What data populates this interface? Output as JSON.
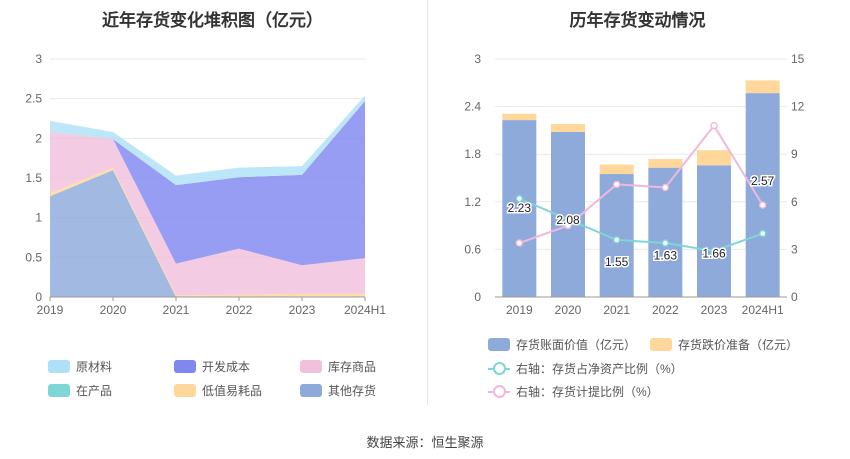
{
  "source_text": "数据来源：恒生聚源",
  "chart_data": [
    {
      "type": "area",
      "title": "近年存货变化堆积图（亿元）",
      "categories": [
        "2019",
        "2020",
        "2021",
        "2022",
        "2023",
        "2024H1"
      ],
      "ylim": [
        0,
        3
      ],
      "yticks": [
        "0",
        "0.5",
        "1",
        "1.5",
        "2",
        "2.5",
        "3"
      ],
      "stacked": true,
      "grid": true,
      "legend_position": "bottom",
      "series": [
        {
          "name": "其他存货",
          "color": "#8eaadb",
          "values": [
            1.27,
            1.6,
            0,
            0,
            0,
            0
          ]
        },
        {
          "name": "低值易耗品",
          "color": "#ffd79a",
          "values": [
            0.04,
            0.03,
            0.02,
            0.03,
            0.04,
            0.04
          ]
        },
        {
          "name": "在产品",
          "color": "#7fd6d6",
          "values": [
            0,
            0,
            0,
            0,
            0,
            0
          ]
        },
        {
          "name": "库存商品",
          "color": "#f0c0dc",
          "values": [
            0.77,
            0.36,
            0.4,
            0.58,
            0.36,
            0.45
          ]
        },
        {
          "name": "开发成本",
          "color": "#8088f0",
          "values": [
            0,
            0,
            0.99,
            0.9,
            1.14,
            1.98
          ]
        },
        {
          "name": "原材料",
          "color": "#aee0f8",
          "values": [
            0.14,
            0.09,
            0.12,
            0.12,
            0.11,
            0.07
          ]
        }
      ],
      "legend_order": [
        "原材料",
        "开发成本",
        "库存商品",
        "在产品",
        "低值易耗品",
        "其他存货"
      ]
    },
    {
      "type": "bar",
      "title": "历年存货变动情况",
      "categories": [
        "2019",
        "2020",
        "2021",
        "2022",
        "2023",
        "2024H1"
      ],
      "ylim": [
        0,
        3
      ],
      "yticks": [
        "0",
        "0.6",
        "1.2",
        "1.8",
        "2.4",
        "3"
      ],
      "y2lim": [
        0,
        15
      ],
      "y2ticks": [
        "0",
        "3",
        "6",
        "9",
        "12",
        "15"
      ],
      "stacked": true,
      "grid": true,
      "legend_position": "bottom",
      "series": [
        {
          "name": "存货账面价值（亿元）",
          "color": "#8eaadb",
          "values": [
            2.23,
            2.08,
            1.55,
            1.63,
            1.66,
            2.57
          ],
          "labels": [
            "2.23",
            "2.08",
            "1.55",
            "1.63",
            "1.66",
            "2.57"
          ]
        },
        {
          "name": "存货跌价准备（亿元）",
          "color": "#ffd79a",
          "values": [
            0.08,
            0.1,
            0.12,
            0.11,
            0.19,
            0.16
          ]
        }
      ],
      "line_series": [
        {
          "name": "右轴：存货占净资产比例（%）",
          "color": "#7fd6d6",
          "axis": "right",
          "values": [
            6.2,
            4.9,
            3.6,
            3.4,
            2.9,
            4.0
          ]
        },
        {
          "name": "右轴：存货计提比例（%）",
          "color": "#f0b8dc",
          "axis": "right",
          "values": [
            3.4,
            4.5,
            7.1,
            6.9,
            10.8,
            5.8
          ]
        }
      ]
    }
  ]
}
